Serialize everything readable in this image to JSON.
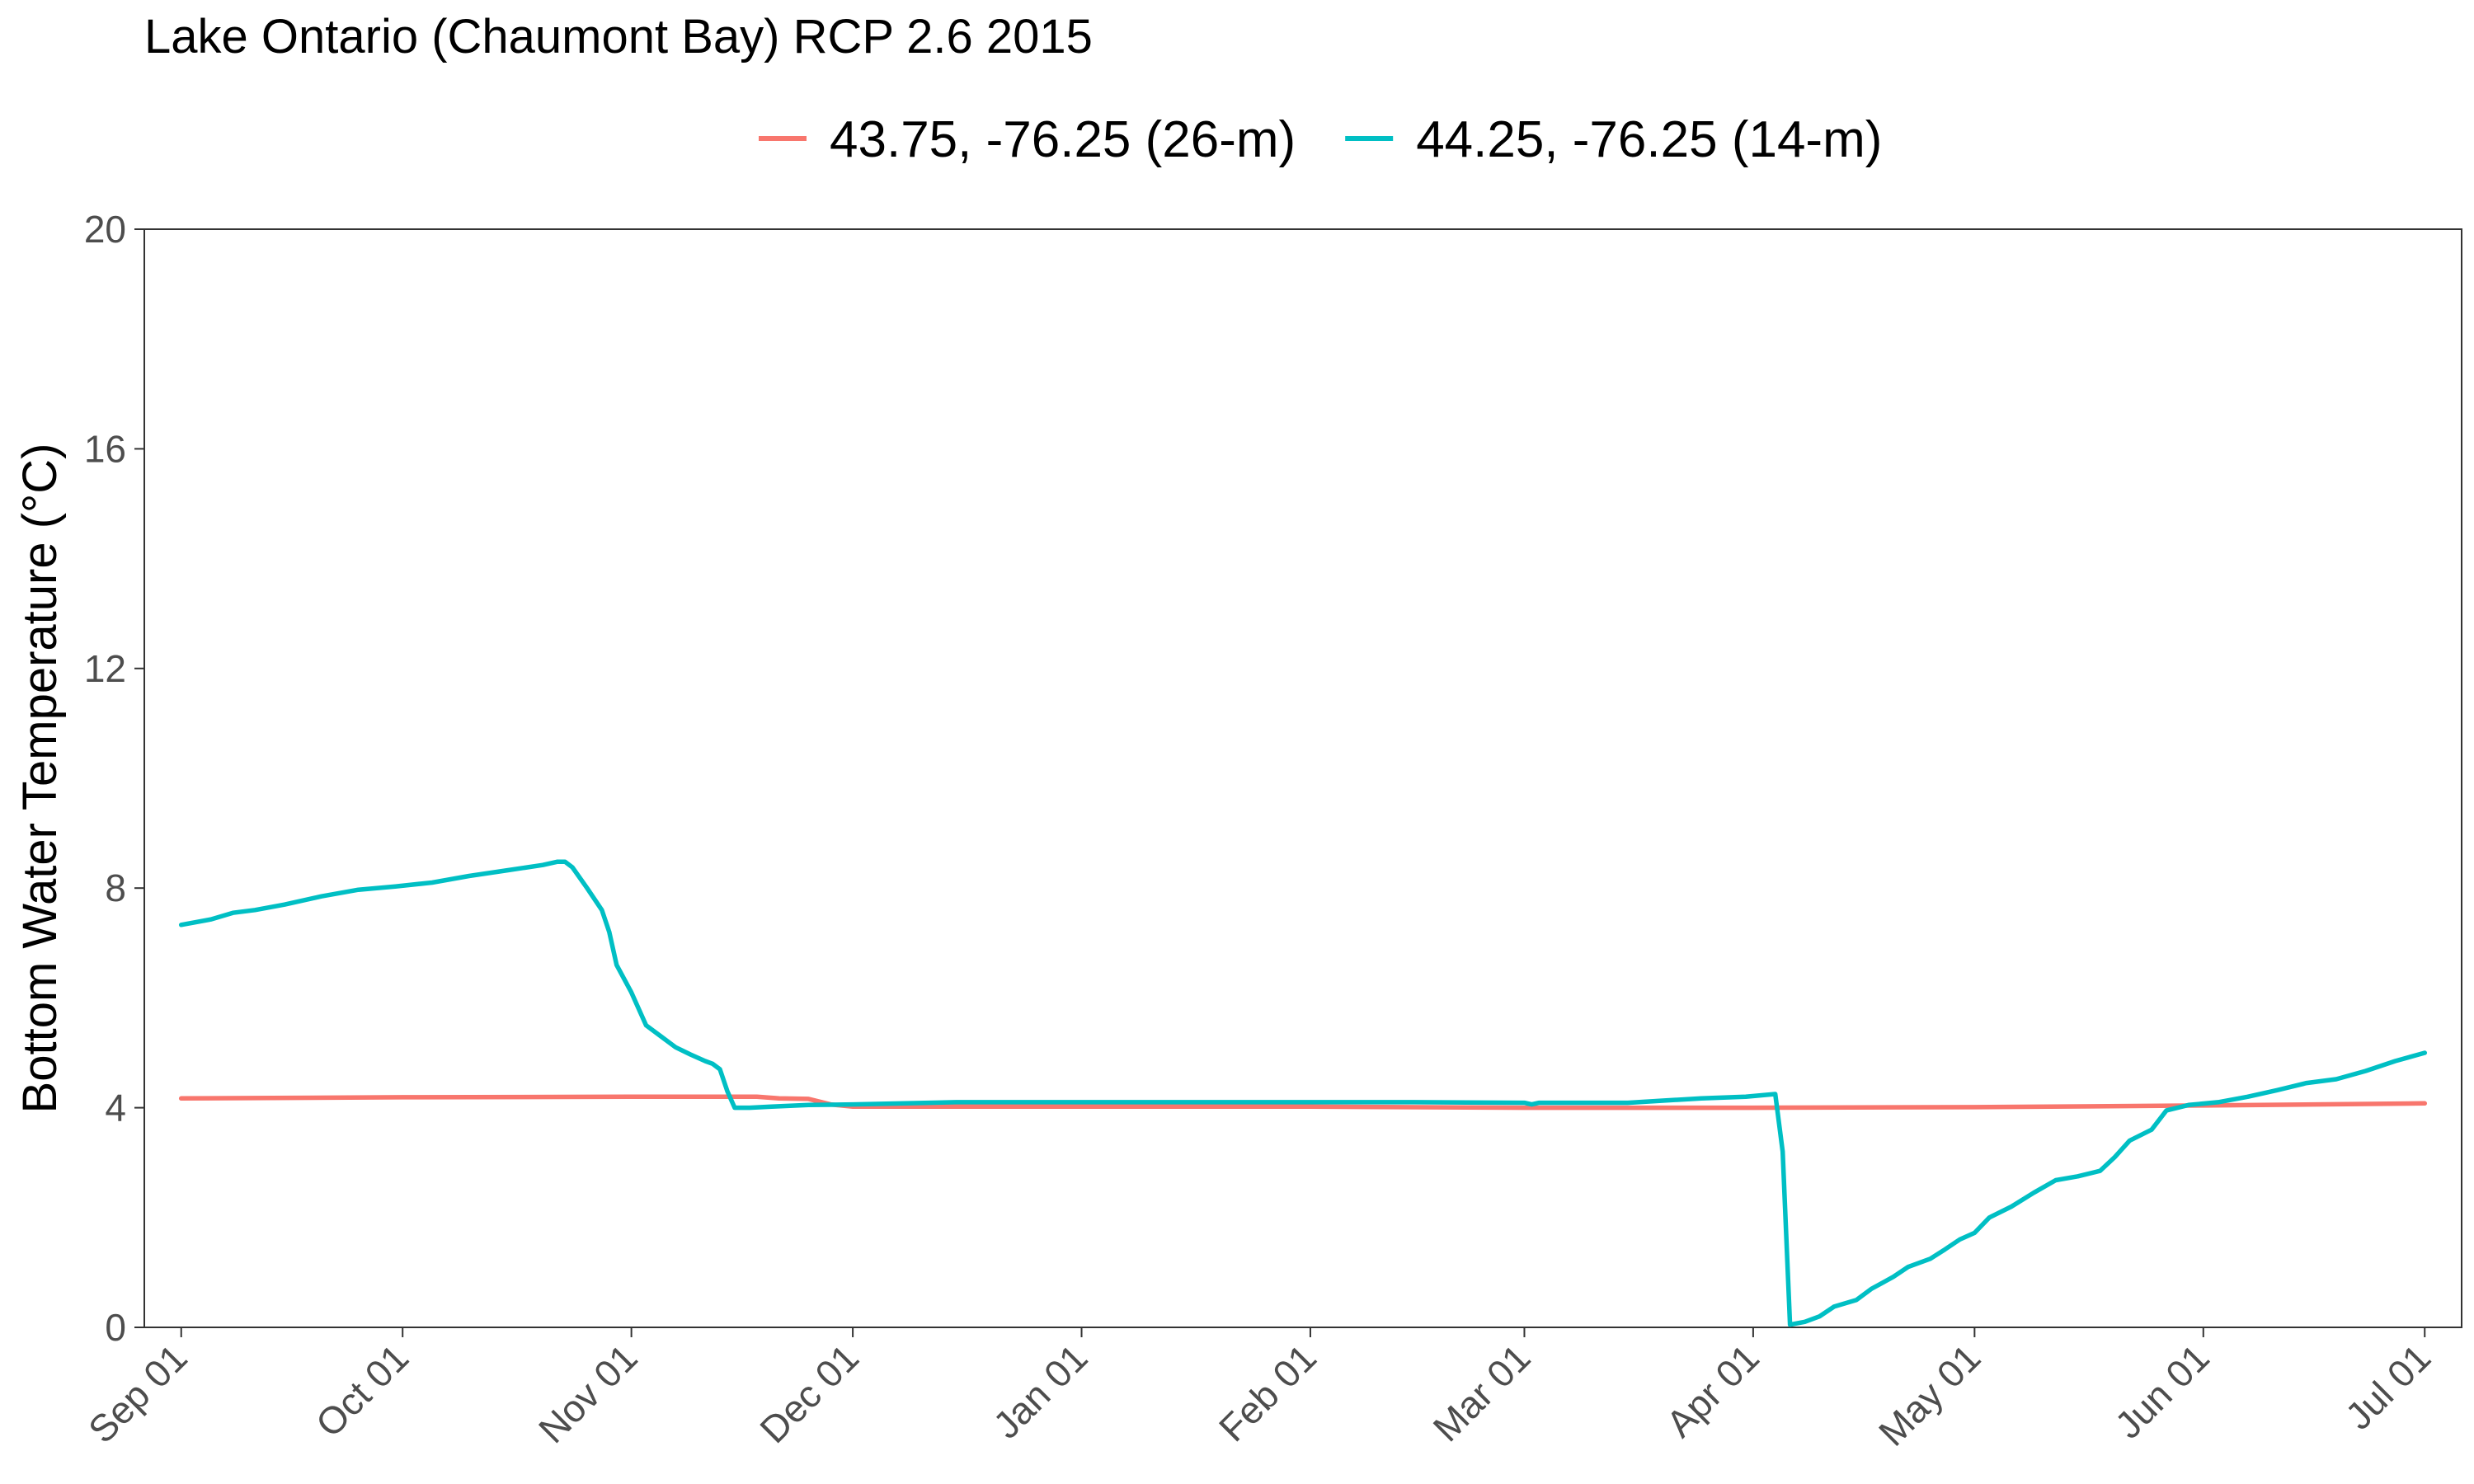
{
  "chart_data": {
    "type": "line",
    "title": "Lake Ontario (Chaumont Bay) RCP 2.6 2015",
    "xlabel": "",
    "ylabel": "Bottom Water Temperature (°C)",
    "xlim": [
      "2015-08-27",
      "2016-07-06"
    ],
    "ylim": [
      0,
      20
    ],
    "x_ticks": [
      "2015-09-01",
      "2015-10-01",
      "2015-11-01",
      "2015-12-01",
      "2016-01-01",
      "2016-02-01",
      "2016-03-01",
      "2016-04-01",
      "2016-05-01",
      "2016-06-01",
      "2016-07-01"
    ],
    "x_tick_labels": [
      "Sep 01",
      "Oct 01",
      "Nov 01",
      "Dec 01",
      "Jan 01",
      "Feb 01",
      "Mar 01",
      "Apr 01",
      "May 01",
      "Jun 01",
      "Jul 01"
    ],
    "y_ticks": [
      0,
      4,
      8,
      12,
      16,
      20
    ],
    "y_tick_labels": [
      "0",
      "4",
      "8",
      "12",
      "16",
      "20"
    ],
    "grid": false,
    "legend_position": "top",
    "series": [
      {
        "name": "43.75, -76.25 (26-m)",
        "color": "#F8766D",
        "points": [
          [
            "2015-09-01",
            4.17
          ],
          [
            "2015-10-01",
            4.19
          ],
          [
            "2015-11-01",
            4.2
          ],
          [
            "2015-11-18",
            4.2
          ],
          [
            "2015-11-21",
            4.17
          ],
          [
            "2015-11-25",
            4.16
          ],
          [
            "2015-11-28",
            4.06
          ],
          [
            "2015-12-01",
            4.02
          ],
          [
            "2016-01-01",
            4.02
          ],
          [
            "2016-02-01",
            4.02
          ],
          [
            "2016-03-01",
            4.0
          ],
          [
            "2016-04-01",
            4.0
          ],
          [
            "2016-05-01",
            4.01
          ],
          [
            "2016-06-01",
            4.04
          ],
          [
            "2016-07-01",
            4.08
          ]
        ]
      },
      {
        "name": "44.25, -76.25 (14-m)",
        "color": "#00BFC4",
        "points": [
          [
            "2015-09-01",
            7.33
          ],
          [
            "2015-09-05",
            7.43
          ],
          [
            "2015-09-08",
            7.55
          ],
          [
            "2015-09-11",
            7.6
          ],
          [
            "2015-09-15",
            7.7
          ],
          [
            "2015-09-20",
            7.85
          ],
          [
            "2015-09-25",
            7.97
          ],
          [
            "2015-09-30",
            8.03
          ],
          [
            "2015-10-05",
            8.1
          ],
          [
            "2015-10-10",
            8.22
          ],
          [
            "2015-10-15",
            8.32
          ],
          [
            "2015-10-20",
            8.42
          ],
          [
            "2015-10-22",
            8.48
          ],
          [
            "2015-10-23",
            8.48
          ],
          [
            "2015-10-24",
            8.38
          ],
          [
            "2015-10-26",
            8.0
          ],
          [
            "2015-10-28",
            7.6
          ],
          [
            "2015-10-29",
            7.2
          ],
          [
            "2015-10-30",
            6.6
          ],
          [
            "2015-11-01",
            6.1
          ],
          [
            "2015-11-03",
            5.5
          ],
          [
            "2015-11-05",
            5.3
          ],
          [
            "2015-11-07",
            5.1
          ],
          [
            "2015-11-09",
            4.97
          ],
          [
            "2015-11-11",
            4.85
          ],
          [
            "2015-11-12",
            4.8
          ],
          [
            "2015-11-13",
            4.7
          ],
          [
            "2015-11-14",
            4.3
          ],
          [
            "2015-11-15",
            4.0
          ],
          [
            "2015-11-17",
            4.0
          ],
          [
            "2015-11-20",
            4.02
          ],
          [
            "2015-11-25",
            4.05
          ],
          [
            "2015-12-01",
            4.06
          ],
          [
            "2015-12-15",
            4.1
          ],
          [
            "2016-01-01",
            4.1
          ],
          [
            "2016-02-01",
            4.1
          ],
          [
            "2016-02-15",
            4.1
          ],
          [
            "2016-03-01",
            4.09
          ],
          [
            "2016-03-02",
            4.06
          ],
          [
            "2016-03-03",
            4.09
          ],
          [
            "2016-03-15",
            4.09
          ],
          [
            "2016-03-20",
            4.13
          ],
          [
            "2016-03-25",
            4.17
          ],
          [
            "2016-03-31",
            4.2
          ],
          [
            "2016-04-04",
            4.25
          ],
          [
            "2016-04-05",
            3.2
          ],
          [
            "2016-04-06",
            0.05
          ],
          [
            "2016-04-08",
            0.1
          ],
          [
            "2016-04-10",
            0.2
          ],
          [
            "2016-04-12",
            0.38
          ],
          [
            "2016-04-15",
            0.5
          ],
          [
            "2016-04-17",
            0.7
          ],
          [
            "2016-04-20",
            0.92
          ],
          [
            "2016-04-22",
            1.1
          ],
          [
            "2016-04-25",
            1.25
          ],
          [
            "2016-04-27",
            1.42
          ],
          [
            "2016-04-29",
            1.6
          ],
          [
            "2016-05-01",
            1.72
          ],
          [
            "2016-05-03",
            2.0
          ],
          [
            "2016-05-06",
            2.2
          ],
          [
            "2016-05-09",
            2.45
          ],
          [
            "2016-05-12",
            2.68
          ],
          [
            "2016-05-15",
            2.75
          ],
          [
            "2016-05-18",
            2.85
          ],
          [
            "2016-05-20",
            3.1
          ],
          [
            "2016-05-22",
            3.4
          ],
          [
            "2016-05-25",
            3.6
          ],
          [
            "2016-05-27",
            3.95
          ],
          [
            "2016-05-30",
            4.05
          ],
          [
            "2016-06-03",
            4.1
          ],
          [
            "2016-06-07",
            4.2
          ],
          [
            "2016-06-11",
            4.32
          ],
          [
            "2016-06-15",
            4.45
          ],
          [
            "2016-06-19",
            4.52
          ],
          [
            "2016-06-23",
            4.67
          ],
          [
            "2016-06-27",
            4.85
          ],
          [
            "2016-07-01",
            5.0
          ]
        ]
      }
    ]
  }
}
